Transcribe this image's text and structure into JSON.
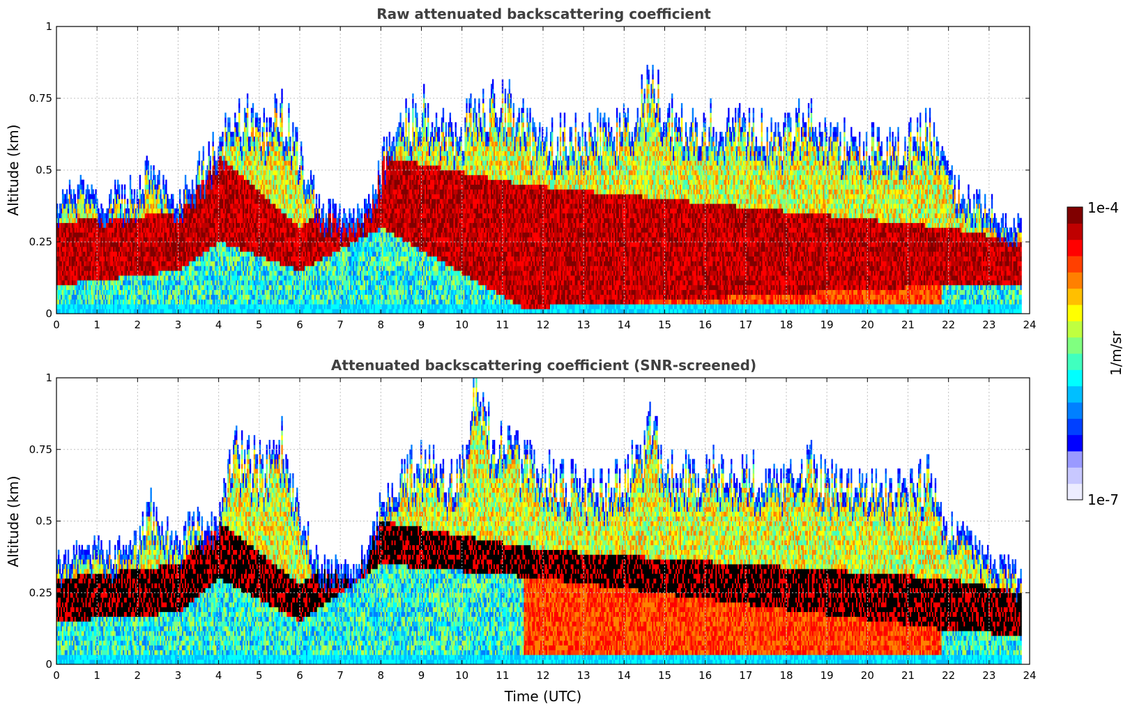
{
  "chart_data": [
    {
      "type": "heatmap",
      "title": "Raw attenuated backscattering coefficient",
      "xlabel": "",
      "ylabel": "Altitude (km)",
      "xlim": [
        0,
        24
      ],
      "ylim": [
        0,
        1
      ],
      "x_ticks": [
        "0",
        "1",
        "2",
        "3",
        "4",
        "5",
        "6",
        "7",
        "8",
        "9",
        "10",
        "11",
        "12",
        "13",
        "14",
        "15",
        "16",
        "17",
        "18",
        "19",
        "20",
        "21",
        "22",
        "23",
        "24"
      ],
      "y_ticks": [
        "0",
        "0.25",
        "0.5",
        "0.75",
        "1"
      ],
      "grid": true,
      "colormap": "jet",
      "data_extent_hours": [
        0,
        23.8
      ],
      "layer_top_km": [
        [
          0,
          0.34
        ],
        [
          0.5,
          0.41
        ],
        [
          1,
          0.37
        ],
        [
          1.5,
          0.39
        ],
        [
          2,
          0.4
        ],
        [
          2.3,
          0.5
        ],
        [
          2.6,
          0.43
        ],
        [
          3,
          0.38
        ],
        [
          3.3,
          0.44
        ],
        [
          3.6,
          0.49
        ],
        [
          4,
          0.58
        ],
        [
          4.4,
          0.68
        ],
        [
          4.8,
          0.65
        ],
        [
          5.2,
          0.62
        ],
        [
          5.5,
          0.68
        ],
        [
          5.8,
          0.6
        ],
        [
          6.1,
          0.46
        ],
        [
          6.5,
          0.36
        ],
        [
          7,
          0.32
        ],
        [
          7.5,
          0.34
        ],
        [
          7.8,
          0.4
        ],
        [
          8.1,
          0.55
        ],
        [
          8.5,
          0.65
        ],
        [
          9,
          0.68
        ],
        [
          9.5,
          0.62
        ],
        [
          10,
          0.63
        ],
        [
          10.4,
          0.7
        ],
        [
          10.8,
          0.72
        ],
        [
          11.2,
          0.7
        ],
        [
          11.6,
          0.62
        ],
        [
          12,
          0.58
        ],
        [
          13,
          0.6
        ],
        [
          14,
          0.62
        ],
        [
          14.7,
          0.78
        ],
        [
          15,
          0.66
        ],
        [
          16,
          0.64
        ],
        [
          17,
          0.62
        ],
        [
          18,
          0.6
        ],
        [
          18.6,
          0.68
        ],
        [
          19,
          0.6
        ],
        [
          20,
          0.56
        ],
        [
          21,
          0.58
        ],
        [
          21.5,
          0.62
        ],
        [
          22,
          0.44
        ],
        [
          22.5,
          0.38
        ],
        [
          23,
          0.35
        ],
        [
          23.8,
          0.28
        ]
      ],
      "strong_layer_km": [
        [
          0,
          [
            0.1,
            0.32
          ]
        ],
        [
          3,
          [
            0.15,
            0.35
          ]
        ],
        [
          4,
          [
            0.25,
            0.55
          ]
        ],
        [
          6,
          [
            0.15,
            0.3
          ]
        ],
        [
          8,
          [
            0.3,
            0.55
          ]
        ],
        [
          11.5,
          [
            0.02,
            0.45
          ]
        ],
        [
          22,
          [
            0.1,
            0.3
          ]
        ],
        [
          23.8,
          [
            0.1,
            0.25
          ]
        ]
      ]
    },
    {
      "type": "heatmap",
      "title": "Attenuated backscattering coefficient (SNR-screened)",
      "xlabel": "Time (UTC)",
      "ylabel": "Altitude (km)",
      "xlim": [
        0,
        24
      ],
      "ylim": [
        0,
        1
      ],
      "x_ticks": [
        "0",
        "1",
        "2",
        "3",
        "4",
        "5",
        "6",
        "7",
        "8",
        "9",
        "10",
        "11",
        "12",
        "13",
        "14",
        "15",
        "16",
        "17",
        "18",
        "19",
        "20",
        "21",
        "22",
        "23",
        "24"
      ],
      "y_ticks": [
        "0",
        "0.25",
        "0.5",
        "0.75",
        "1"
      ],
      "grid": true,
      "colormap": "jet",
      "data_extent_hours": [
        0,
        23.8
      ],
      "layer_top_km": [
        [
          0,
          0.34
        ],
        [
          0.5,
          0.4
        ],
        [
          1,
          0.37
        ],
        [
          1.5,
          0.38
        ],
        [
          2,
          0.4
        ],
        [
          2.3,
          0.54
        ],
        [
          2.6,
          0.44
        ],
        [
          3,
          0.4
        ],
        [
          3.3,
          0.48
        ],
        [
          3.6,
          0.46
        ],
        [
          4,
          0.52
        ],
        [
          4.4,
          0.72
        ],
        [
          4.8,
          0.68
        ],
        [
          5.2,
          0.66
        ],
        [
          5.5,
          0.76
        ],
        [
          5.8,
          0.6
        ],
        [
          6.1,
          0.44
        ],
        [
          6.5,
          0.33
        ],
        [
          7,
          0.31
        ],
        [
          7.5,
          0.34
        ],
        [
          7.8,
          0.45
        ],
        [
          8.1,
          0.6
        ],
        [
          8.5,
          0.64
        ],
        [
          9,
          0.69
        ],
        [
          9.5,
          0.62
        ],
        [
          10,
          0.65
        ],
        [
          10.3,
          0.95
        ],
        [
          10.6,
          0.8
        ],
        [
          11,
          0.74
        ],
        [
          11.4,
          0.7
        ],
        [
          12,
          0.64
        ],
        [
          13,
          0.6
        ],
        [
          14,
          0.62
        ],
        [
          14.7,
          0.8
        ],
        [
          15,
          0.64
        ],
        [
          16,
          0.66
        ],
        [
          17,
          0.64
        ],
        [
          18,
          0.6
        ],
        [
          18.6,
          0.68
        ],
        [
          19,
          0.62
        ],
        [
          20,
          0.6
        ],
        [
          21,
          0.58
        ],
        [
          21.5,
          0.64
        ],
        [
          22,
          0.46
        ],
        [
          22.5,
          0.4
        ],
        [
          23,
          0.36
        ],
        [
          23.8,
          0.28
        ]
      ],
      "saturated_layer_km": [
        [
          0,
          [
            0.15,
            0.3
          ]
        ],
        [
          3,
          [
            0.18,
            0.35
          ]
        ],
        [
          4,
          [
            0.3,
            0.5
          ]
        ],
        [
          6,
          [
            0.15,
            0.28
          ]
        ],
        [
          8,
          [
            0.35,
            0.5
          ]
        ],
        [
          12,
          [
            0.3,
            0.4
          ]
        ],
        [
          22,
          [
            0.12,
            0.3
          ]
        ],
        [
          23.8,
          [
            0.1,
            0.25
          ]
        ]
      ]
    }
  ],
  "colorbar": {
    "label": "1/m/sr",
    "max_label": "1e-4",
    "min_label": "1e-7",
    "colors": [
      "#ececff",
      "#c8c8ff",
      "#9a9aff",
      "#0000ff",
      "#0040ff",
      "#0080ff",
      "#00bfff",
      "#00ffff",
      "#40ffbf",
      "#80ff80",
      "#bfff40",
      "#ffff00",
      "#ffbf00",
      "#ff8000",
      "#ff4000",
      "#ff0000",
      "#bf0000",
      "#800000"
    ]
  }
}
